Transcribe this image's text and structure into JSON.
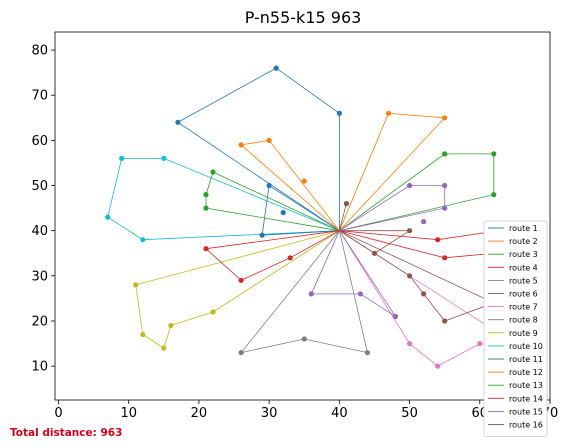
{
  "chart_data": {
    "type": "line",
    "title": "P-n55-k15 963",
    "xlabel": "",
    "ylabel": "",
    "xlim": [
      -0.5,
      70
    ],
    "ylim": [
      2.5,
      84
    ],
    "xticks": [
      0,
      10,
      20,
      30,
      40,
      50,
      60,
      70
    ],
    "yticks": [
      10,
      20,
      30,
      40,
      50,
      60,
      70,
      80
    ],
    "xtick_labels": [
      "0",
      "10",
      "20",
      "30",
      "40",
      "50",
      "60",
      "70"
    ],
    "ytick_labels": [
      "10",
      "20",
      "30",
      "40",
      "50",
      "60",
      "70",
      "80"
    ],
    "grid": false,
    "legend_position": "bottom-right",
    "depot": [
      40,
      40
    ],
    "series": [
      {
        "name": "route 1",
        "color": "#1f77b4",
        "points": [
          [
            40,
            40
          ],
          [
            40,
            66
          ],
          [
            31,
            76
          ],
          [
            17,
            64
          ],
          [
            40,
            40
          ]
        ]
      },
      {
        "name": "route 2",
        "color": "#ff7f0e",
        "points": [
          [
            40,
            40
          ],
          [
            55,
            65
          ],
          [
            47,
            66
          ],
          [
            40,
            40
          ]
        ]
      },
      {
        "name": "route 3",
        "color": "#2ca02c",
        "points": [
          [
            40,
            40
          ],
          [
            62,
            48
          ],
          [
            62,
            57
          ],
          [
            55,
            57
          ],
          [
            40,
            40
          ]
        ]
      },
      {
        "name": "route 4",
        "color": "#d62728",
        "points": [
          [
            40,
            40
          ],
          [
            54,
            38
          ],
          [
            67,
            41
          ],
          [
            62,
            35
          ],
          [
            55,
            34
          ],
          [
            40,
            40
          ]
        ]
      },
      {
        "name": "route 5",
        "color": "#9467bd",
        "points": [
          [
            40,
            40
          ],
          [
            55,
            45
          ],
          [
            55,
            50
          ],
          [
            50,
            50
          ],
          [
            40,
            40
          ]
        ]
      },
      {
        "name": "route 6",
        "color": "#8c564b",
        "points": [
          [
            40,
            40
          ],
          [
            50,
            40
          ],
          [
            45,
            35
          ],
          [
            40,
            40
          ]
        ]
      },
      {
        "name": "route 7",
        "color": "#e377c2",
        "points": [
          [
            40,
            40
          ],
          [
            66,
            14
          ],
          [
            60,
            15
          ],
          [
            54,
            10
          ],
          [
            50,
            15
          ],
          [
            40,
            40
          ]
        ]
      },
      {
        "name": "route 8",
        "color": "#7f7f7f",
        "points": [
          [
            40,
            40
          ],
          [
            44,
            13
          ],
          [
            35,
            16
          ],
          [
            26,
            13
          ],
          [
            40,
            40
          ]
        ]
      },
      {
        "name": "route 9",
        "color": "#bcbd22",
        "points": [
          [
            40,
            40
          ],
          [
            22,
            22
          ],
          [
            16,
            19
          ],
          [
            15,
            14
          ],
          [
            12,
            17
          ],
          [
            11,
            28
          ],
          [
            40,
            40
          ]
        ]
      },
      {
        "name": "route 10",
        "color": "#17becf",
        "points": [
          [
            40,
            40
          ],
          [
            12,
            38
          ],
          [
            7,
            43
          ],
          [
            9,
            56
          ],
          [
            15,
            56
          ],
          [
            40,
            40
          ]
        ]
      },
      {
        "name": "route 11",
        "color": "#1f77b4",
        "points": [
          [
            40,
            40
          ],
          [
            29,
            39
          ],
          [
            30,
            50
          ],
          [
            40,
            40
          ]
        ]
      },
      {
        "name": "route 12",
        "color": "#ff7f0e",
        "points": [
          [
            40,
            40
          ],
          [
            30,
            60
          ],
          [
            26,
            59
          ],
          [
            40,
            40
          ]
        ]
      },
      {
        "name": "route 13",
        "color": "#2ca02c",
        "points": [
          [
            40,
            40
          ],
          [
            21,
            45
          ],
          [
            21,
            48
          ],
          [
            22,
            53
          ],
          [
            40,
            40
          ]
        ]
      },
      {
        "name": "route 14",
        "color": "#d62728",
        "points": [
          [
            40,
            40
          ],
          [
            21,
            36
          ],
          [
            26,
            29
          ],
          [
            33,
            34
          ],
          [
            40,
            40
          ]
        ]
      },
      {
        "name": "route 15",
        "color": "#9467bd",
        "points": [
          [
            40,
            40
          ],
          [
            48,
            21
          ],
          [
            43,
            26
          ],
          [
            36,
            26
          ],
          [
            40,
            40
          ]
        ]
      },
      {
        "name": "route 16",
        "color": "#8c564b",
        "points": [
          [
            40,
            40
          ],
          [
            41,
            46
          ],
          [
            40,
            40
          ],
          [
            62,
            24
          ],
          [
            55,
            20
          ],
          [
            52,
            26
          ],
          [
            50,
            30
          ],
          [
            40,
            40
          ]
        ]
      }
    ],
    "extra_points": [
      {
        "color": "#1f77b4",
        "point": [
          32,
          44
        ]
      },
      {
        "color": "#ff7f0e",
        "point": [
          35,
          51
        ]
      },
      {
        "color": "#9467bd",
        "point": [
          52,
          42
        ]
      }
    ],
    "partial_tick_fragment": "60",
    "footer_text": "Total distance: 963",
    "footer_color": "#d0021b"
  }
}
